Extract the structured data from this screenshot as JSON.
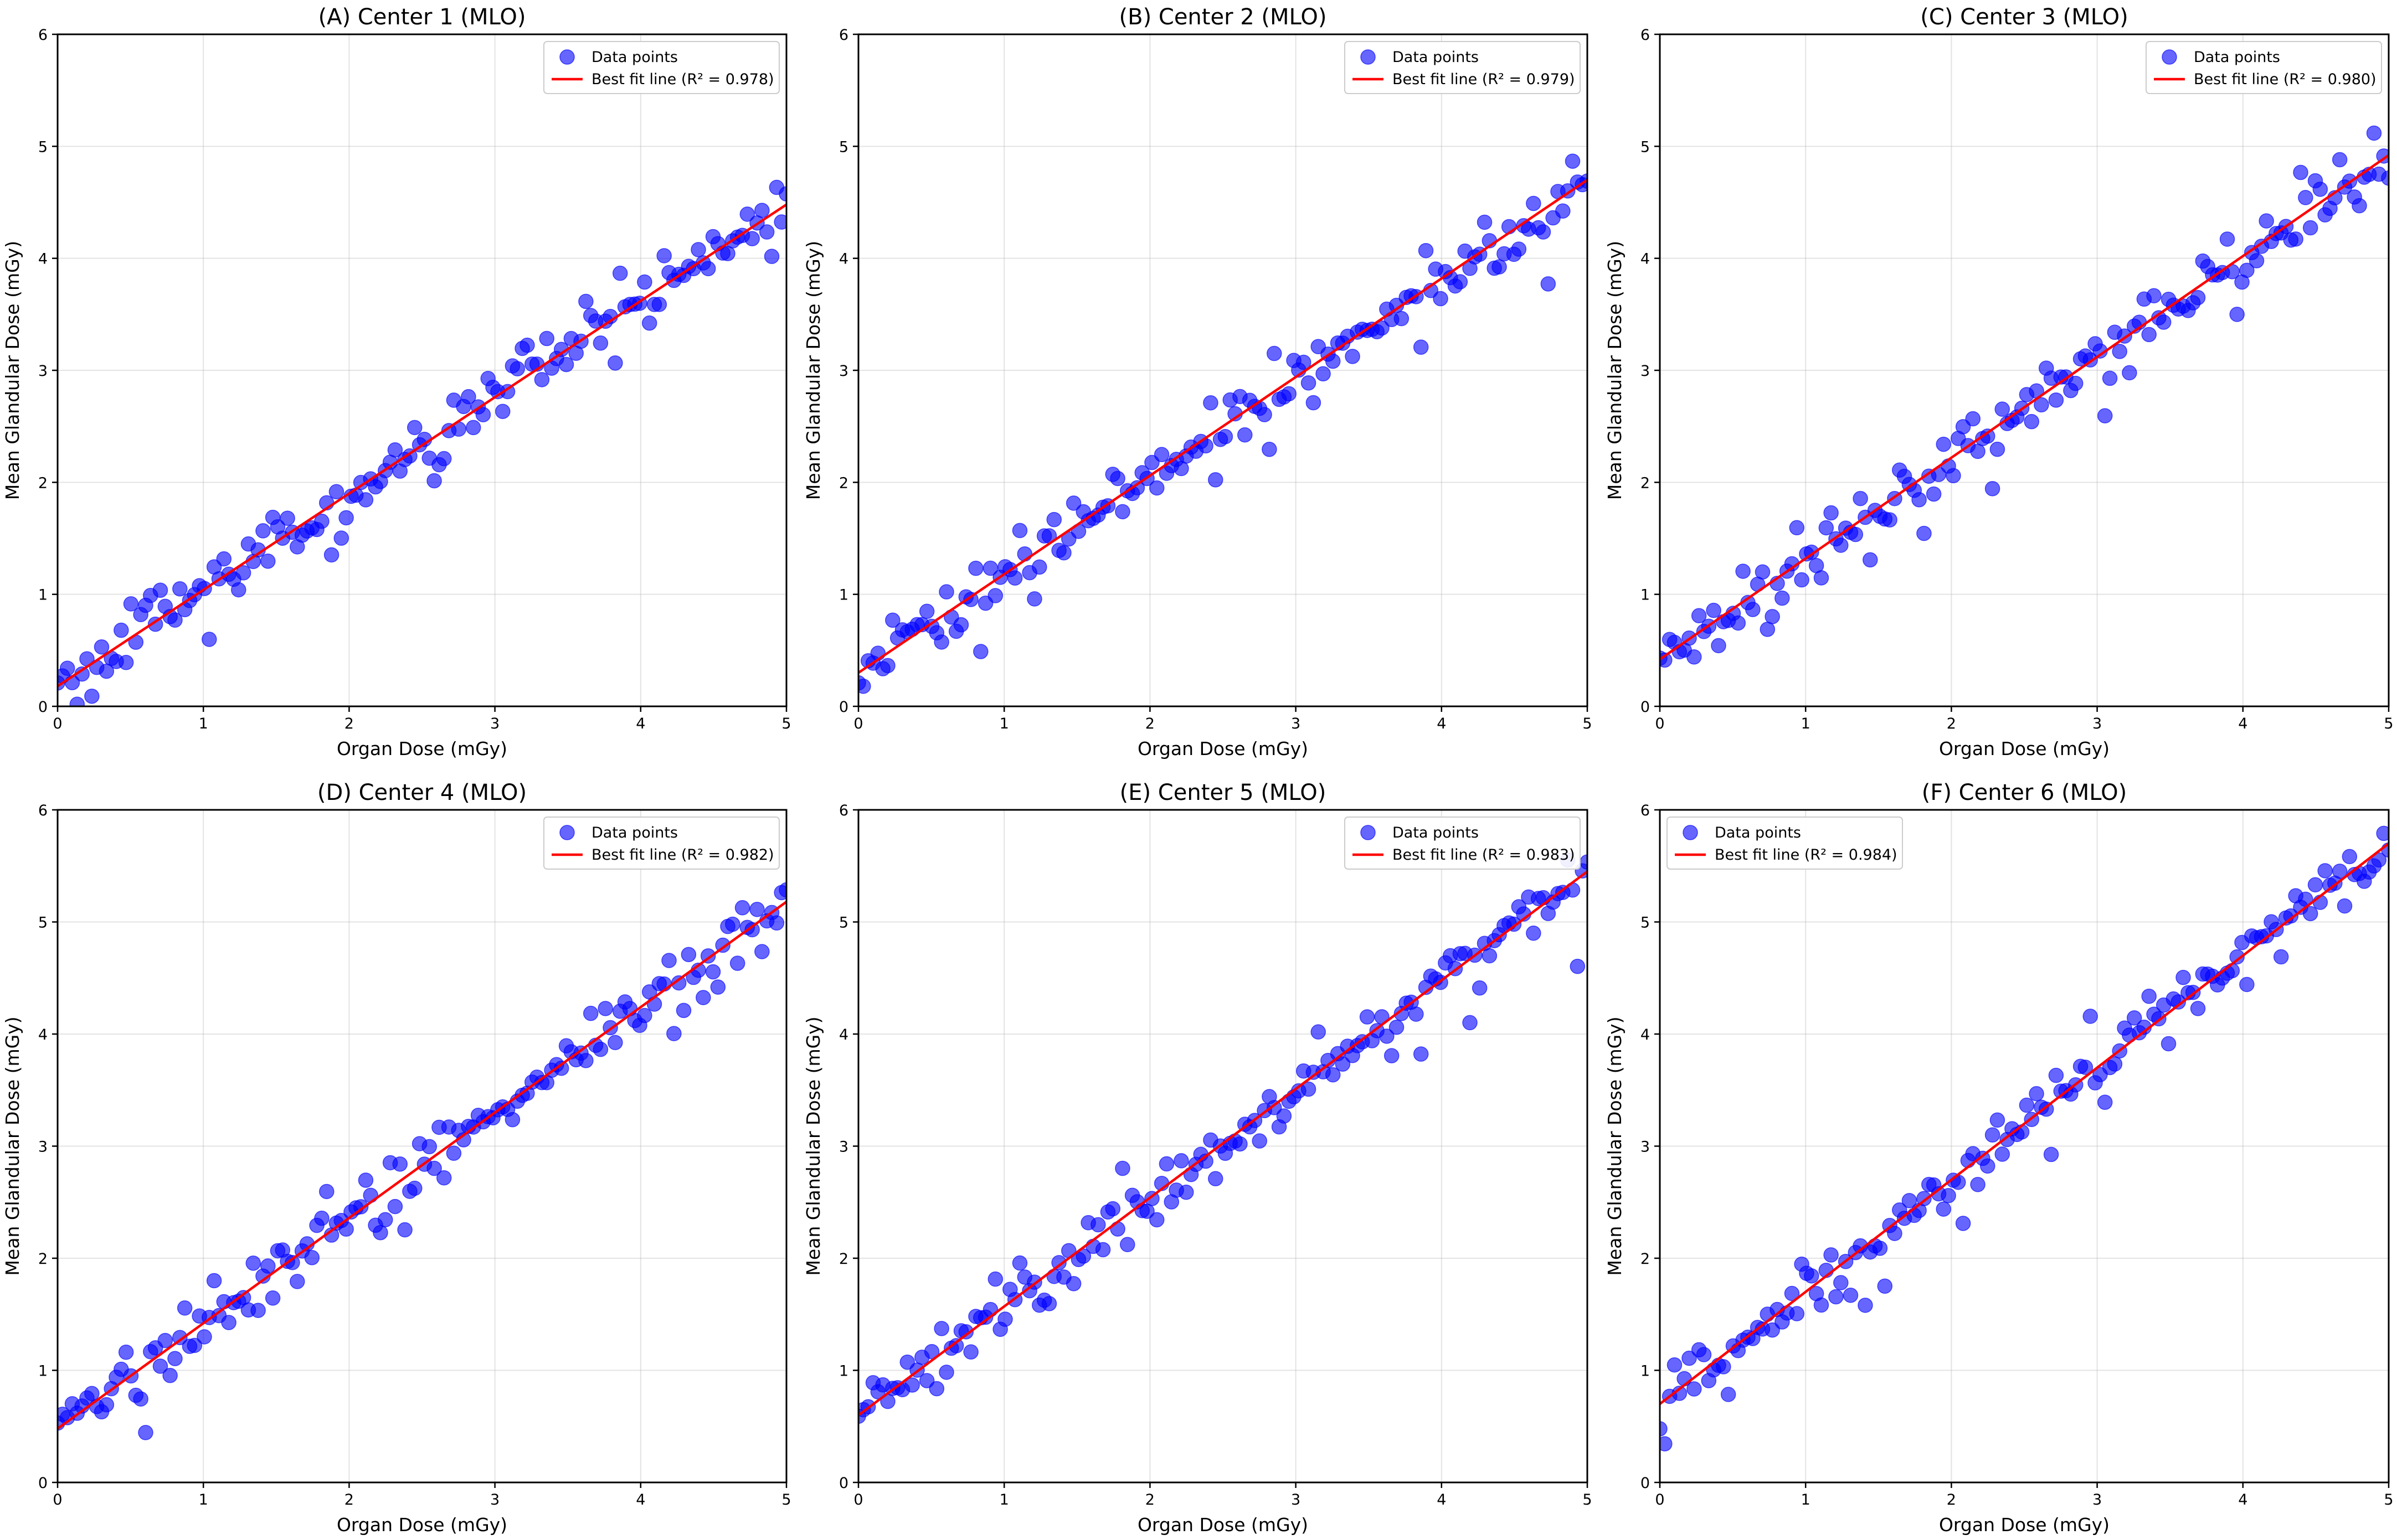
{
  "chart_data": [
    {
      "type": "scatter",
      "title": "(A) Center 1 (MLO)",
      "xlabel": "Organ Dose (mGy)",
      "ylabel": "Mean Glandular Dose (mGy)",
      "xlim": [
        0,
        5
      ],
      "ylim": [
        0,
        6
      ],
      "xticks": [
        "0",
        "1",
        "2",
        "3",
        "4",
        "5"
      ],
      "yticks": [
        "0",
        "1",
        "2",
        "3",
        "4",
        "5",
        "6"
      ],
      "grid": true,
      "legend_position": "top-right",
      "series": [
        {
          "name": "Data points",
          "kind": "scatter",
          "color": "#0000ff",
          "n_points": 150,
          "intercept": 0.18,
          "slope": 0.86,
          "noise": 0.13
        },
        {
          "name": "Best fit line (R² = 0.978)",
          "kind": "line",
          "color": "#ff0000",
          "intercept": 0.18,
          "slope": 0.86,
          "x": [
            0,
            5
          ],
          "y": [
            0.18,
            4.48
          ]
        }
      ]
    },
    {
      "type": "scatter",
      "title": "(B) Center 2 (MLO)",
      "xlabel": "Organ Dose (mGy)",
      "ylabel": "Mean Glandular Dose (mGy)",
      "xlim": [
        0,
        5
      ],
      "ylim": [
        0,
        6
      ],
      "xticks": [
        "0",
        "1",
        "2",
        "3",
        "4",
        "5"
      ],
      "yticks": [
        "0",
        "1",
        "2",
        "3",
        "4",
        "5",
        "6"
      ],
      "grid": true,
      "legend_position": "top-right",
      "series": [
        {
          "name": "Data points",
          "kind": "scatter",
          "color": "#0000ff",
          "n_points": 150,
          "intercept": 0.3,
          "slope": 0.88,
          "noise": 0.13
        },
        {
          "name": "Best fit line (R² = 0.979)",
          "kind": "line",
          "color": "#ff0000",
          "intercept": 0.3,
          "slope": 0.88,
          "x": [
            0,
            5
          ],
          "y": [
            0.3,
            4.7
          ]
        }
      ]
    },
    {
      "type": "scatter",
      "title": "(C) Center 3 (MLO)",
      "xlabel": "Organ Dose (mGy)",
      "ylabel": "Mean Glandular Dose (mGy)",
      "xlim": [
        0,
        5
      ],
      "ylim": [
        0,
        6
      ],
      "xticks": [
        "0",
        "1",
        "2",
        "3",
        "4",
        "5"
      ],
      "yticks": [
        "0",
        "1",
        "2",
        "3",
        "4",
        "5",
        "6"
      ],
      "grid": true,
      "legend_position": "top-right",
      "series": [
        {
          "name": "Data points",
          "kind": "scatter",
          "color": "#0000ff",
          "n_points": 150,
          "intercept": 0.42,
          "slope": 0.9,
          "noise": 0.13
        },
        {
          "name": "Best fit line (R² = 0.980)",
          "kind": "line",
          "color": "#ff0000",
          "intercept": 0.42,
          "slope": 0.9,
          "x": [
            0,
            5
          ],
          "y": [
            0.42,
            4.92
          ]
        }
      ]
    },
    {
      "type": "scatter",
      "title": "(D) Center 4 (MLO)",
      "xlabel": "Organ Dose (mGy)",
      "ylabel": "Mean Glandular Dose (mGy)",
      "xlim": [
        0,
        5
      ],
      "ylim": [
        0,
        6
      ],
      "xticks": [
        "0",
        "1",
        "2",
        "3",
        "4",
        "5"
      ],
      "yticks": [
        "0",
        "1",
        "2",
        "3",
        "4",
        "5",
        "6"
      ],
      "grid": true,
      "legend_position": "top-right",
      "series": [
        {
          "name": "Data points",
          "kind": "scatter",
          "color": "#0000ff",
          "n_points": 150,
          "intercept": 0.48,
          "slope": 0.94,
          "noise": 0.13
        },
        {
          "name": "Best fit line (R² = 0.982)",
          "kind": "line",
          "color": "#ff0000",
          "intercept": 0.48,
          "slope": 0.94,
          "x": [
            0,
            5
          ],
          "y": [
            0.48,
            5.18
          ]
        }
      ]
    },
    {
      "type": "scatter",
      "title": "(E) Center 5 (MLO)",
      "xlabel": "Organ Dose (mGy)",
      "ylabel": "Mean Glandular Dose (mGy)",
      "xlim": [
        0,
        5
      ],
      "ylim": [
        0,
        6
      ],
      "xticks": [
        "0",
        "1",
        "2",
        "3",
        "4",
        "5"
      ],
      "yticks": [
        "0",
        "1",
        "2",
        "3",
        "4",
        "5",
        "6"
      ],
      "grid": true,
      "legend_position": "top-right",
      "series": [
        {
          "name": "Data points",
          "kind": "scatter",
          "color": "#0000ff",
          "n_points": 150,
          "intercept": 0.6,
          "slope": 0.97,
          "noise": 0.13
        },
        {
          "name": "Best fit line (R² = 0.983)",
          "kind": "line",
          "color": "#ff0000",
          "intercept": 0.6,
          "slope": 0.97,
          "x": [
            0,
            5
          ],
          "y": [
            0.6,
            5.45
          ]
        }
      ]
    },
    {
      "type": "scatter",
      "title": "(F) Center 6 (MLO)",
      "xlabel": "Organ Dose (mGy)",
      "ylabel": "Mean Glandular Dose (mGy)",
      "xlim": [
        0,
        5
      ],
      "ylim": [
        0,
        6
      ],
      "xticks": [
        "0",
        "1",
        "2",
        "3",
        "4",
        "5"
      ],
      "yticks": [
        "0",
        "1",
        "2",
        "3",
        "4",
        "5",
        "6"
      ],
      "grid": true,
      "legend_position": "top-left",
      "series": [
        {
          "name": "Data points",
          "kind": "scatter",
          "color": "#0000ff",
          "n_points": 150,
          "intercept": 0.7,
          "slope": 1.0,
          "noise": 0.13
        },
        {
          "name": "Best fit line (R² = 0.984)",
          "kind": "line",
          "color": "#ff0000",
          "intercept": 0.7,
          "slope": 1.0,
          "x": [
            0,
            5
          ],
          "y": [
            0.7,
            5.7
          ]
        }
      ]
    }
  ]
}
